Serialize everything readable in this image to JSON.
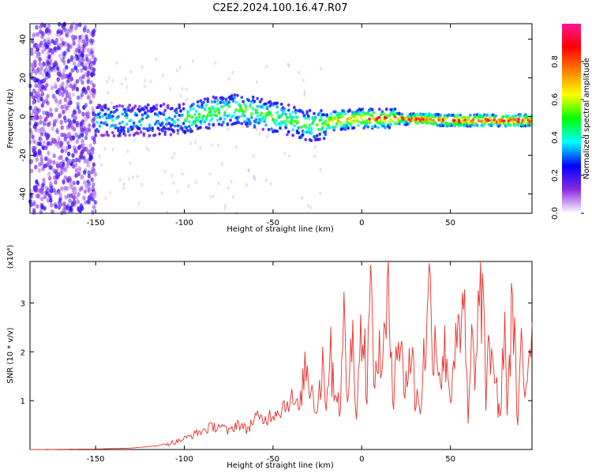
{
  "title": "C2E2.2024.100.16.47.R07",
  "chart_data": [
    {
      "type": "heatmap",
      "xlabel": "Height of straight line (km)",
      "ylabel": "Frequency (Hz)",
      "xlim": [
        -187,
        96
      ],
      "ylim": [
        -50,
        48
      ],
      "x_ticks": [
        -150,
        -100,
        -50,
        0,
        50
      ],
      "y_ticks": [
        -40,
        -20,
        0,
        20,
        40
      ],
      "colorbar": {
        "label": "Normalized spectral amplitude",
        "range": [
          0.0,
          1.0
        ],
        "ticks": [
          0.0,
          0.2,
          0.4,
          0.6,
          0.8
        ],
        "colormap": [
          "#ffffff",
          "#8a2be2",
          "#0000ff",
          "#00ffff",
          "#00ff00",
          "#ffff00",
          "#ff8000",
          "#ff0000",
          "#ff1493"
        ]
      },
      "ridge_center_hz": [
        {
          "x": -150,
          "y": -2
        },
        {
          "x": -120,
          "y": -2
        },
        {
          "x": -100,
          "y": -1
        },
        {
          "x": -85,
          "y": 2
        },
        {
          "x": -70,
          "y": 4
        },
        {
          "x": -55,
          "y": 1
        },
        {
          "x": -40,
          "y": -2
        },
        {
          "x": -28,
          "y": -5
        },
        {
          "x": -15,
          "y": -2
        },
        {
          "x": 0,
          "y": -1
        },
        {
          "x": 20,
          "y": -1
        },
        {
          "x": 50,
          "y": -2
        },
        {
          "x": 96,
          "y": -2
        }
      ]
    },
    {
      "type": "line",
      "xlabel": "Height of straight line (km)",
      "ylabel": "SNR (10 * v/v)",
      "y_multiplier": "(x10⁴)",
      "xlim": [
        -187,
        96
      ],
      "ylim": [
        0,
        3.85
      ],
      "x_ticks": [
        -150,
        -100,
        -50,
        0,
        50
      ],
      "y_ticks": [
        1,
        2,
        3
      ],
      "series_color": "#e8302a",
      "series": [
        {
          "x": [
            -187,
            -150,
            -130,
            -120,
            -115,
            -110,
            -105,
            -100,
            -95,
            -90,
            -85,
            -80,
            -75,
            -70,
            -65,
            -60,
            -55,
            -50,
            -45,
            -40,
            -35,
            -32,
            -28,
            -25,
            -22,
            -20,
            -18,
            -15,
            -12,
            -10,
            -8,
            -5,
            -3,
            0,
            3,
            5,
            8,
            10,
            12,
            15,
            18,
            20,
            22,
            25,
            28,
            30,
            33,
            35,
            38,
            40,
            42,
            45,
            48,
            50,
            53,
            55,
            58,
            60,
            62,
            65,
            67,
            68,
            70,
            72,
            75,
            78,
            80,
            82,
            85,
            88,
            90,
            92,
            94,
            96
          ],
          "y": [
            0.0,
            0.01,
            0.03,
            0.06,
            0.08,
            0.12,
            0.15,
            0.22,
            0.3,
            0.38,
            0.45,
            0.5,
            0.35,
            0.55,
            0.4,
            0.65,
            0.6,
            0.75,
            0.85,
            1.05,
            0.8,
            1.7,
            1.25,
            0.9,
            1.8,
            1.1,
            1.95,
            1.3,
            0.95,
            2.45,
            1.2,
            2.2,
            1.0,
            2.55,
            1.5,
            3.05,
            1.3,
            2.2,
            1.75,
            3.05,
            1.25,
            2.6,
            1.8,
            1.4,
            2.05,
            1.1,
            0.95,
            1.8,
            3.1,
            2.5,
            2.2,
            1.5,
            2.2,
            0.9,
            2.7,
            1.95,
            2.8,
            0.5,
            2.0,
            1.8,
            3.85,
            2.9,
            1.1,
            2.3,
            1.6,
            0.5,
            2.6,
            1.0,
            3.05,
            0.4,
            2.1,
            1.1,
            2.0,
            2.6
          ]
        }
      ]
    }
  ]
}
